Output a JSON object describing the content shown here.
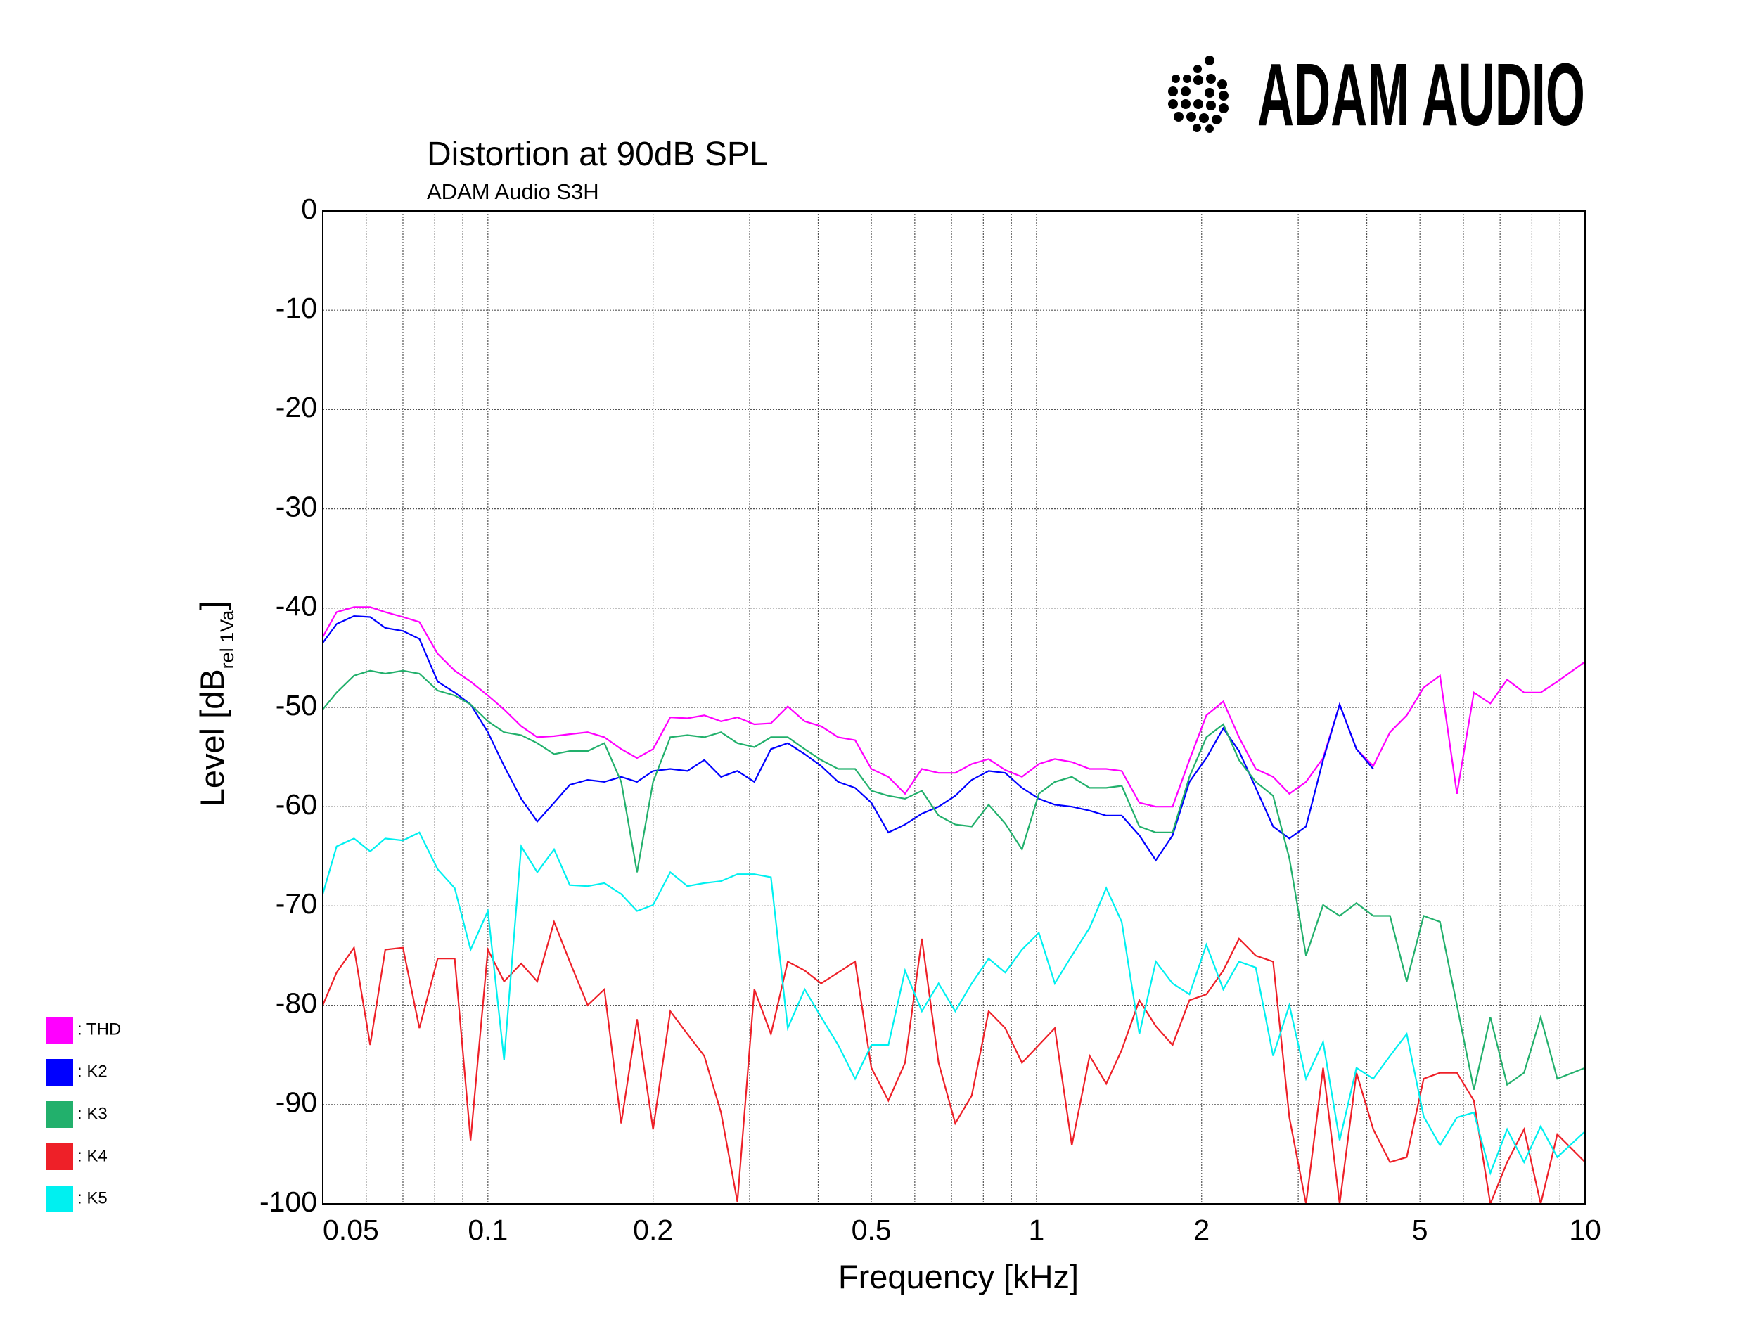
{
  "brand": "ADAM AUDIO",
  "chart_data": {
    "type": "line",
    "title": "Distortion at 90dB SPL",
    "subtitle": "ADAM Audio S3H",
    "xlabel": "Frequency [kHz]",
    "ylabel": "Level [dB",
    "ylabel_sub": "rel 1Va",
    "ylabel_end": "]",
    "xscale": "log",
    "grid": true,
    "legend": "bottom-left",
    "xlim": [
      0.05,
      10
    ],
    "xticks": [
      0.05,
      0.1,
      0.2,
      0.5,
      1,
      2,
      5,
      10
    ],
    "xminorticks": [
      0.06,
      0.07,
      0.08,
      0.09,
      0.3,
      0.4,
      0.6,
      0.7,
      0.8,
      0.9,
      3,
      4,
      6,
      7,
      8,
      9
    ],
    "ylim": [
      -100,
      0
    ],
    "yticks": [
      0,
      -10,
      -20,
      -30,
      -40,
      -50,
      -60,
      -70,
      -80,
      -90,
      -100
    ],
    "x": [
      0.05,
      0.053,
      0.057,
      0.061,
      0.065,
      0.07,
      0.075,
      0.081,
      0.087,
      0.093,
      0.1,
      0.107,
      0.115,
      0.123,
      0.132,
      0.141,
      0.152,
      0.163,
      0.175,
      0.187,
      0.2,
      0.215,
      0.231,
      0.248,
      0.266,
      0.285,
      0.306,
      0.328,
      0.352,
      0.378,
      0.405,
      0.435,
      0.467,
      0.5,
      0.537,
      0.576,
      0.618,
      0.663,
      0.711,
      0.762,
      0.818,
      0.877,
      0.941,
      1.01,
      1.08,
      1.16,
      1.25,
      1.34,
      1.43,
      1.54,
      1.65,
      1.77,
      1.9,
      2.04,
      2.19,
      2.34,
      2.51,
      2.7,
      2.89,
      3.1,
      3.33,
      3.57,
      3.83,
      4.11,
      4.41,
      4.73,
      5.08,
      5.44,
      5.84,
      6.27,
      6.72,
      7.21,
      7.74,
      8.3,
      8.9,
      10
    ],
    "series": [
      {
        "name": ": THD",
        "color": "#ff00ff",
        "values": [
          -42.9,
          -40.4,
          -39.9,
          -39.9,
          -40.4,
          -40.9,
          -41.4,
          -44.6,
          -46.3,
          -47.4,
          -48.8,
          -50.2,
          -51.9,
          -53,
          -52.9,
          -52.7,
          -52.5,
          -53,
          -54.2,
          -55.1,
          -54.2,
          -51,
          -51.1,
          -50.8,
          -51.4,
          -51,
          -51.7,
          -51.6,
          -49.9,
          -51.4,
          -51.9,
          -53,
          -53.3,
          -56.2,
          -57,
          -58.7,
          -56.2,
          -56.6,
          -56.6,
          -55.7,
          -55.2,
          -56.3,
          -57,
          -55.7,
          -55.2,
          -55.5,
          -56.2,
          -56.2,
          -56.4,
          -59.6,
          -60,
          -60,
          -55.3,
          -50.8,
          -49.4,
          -53,
          -56.2,
          -57,
          -58.7,
          -57.5,
          -55.1,
          -49.7,
          -54.2,
          -55.9,
          -52.5,
          -50.8,
          -48,
          -46.8,
          -58.7,
          -48.5,
          -49.6,
          -47.2,
          -48.5,
          -48.5,
          -47.4,
          -45.4
        ]
      },
      {
        "name": ": K2",
        "color": "#0000ff",
        "values": [
          -43.5,
          -41.6,
          -40.8,
          -40.9,
          -42,
          -42.3,
          -43.1,
          -47.4,
          -48.5,
          -49.7,
          -52.5,
          -55.9,
          -59.2,
          -61.5,
          -59.6,
          -57.8,
          -57.3,
          -57.5,
          -57,
          -57.5,
          -56.4,
          -56.2,
          -56.4,
          -55.3,
          -57,
          -56.4,
          -57.5,
          -54.2,
          -53.6,
          -54.7,
          -55.9,
          -57.5,
          -58.1,
          -59.6,
          -62.6,
          -61.8,
          -60.7,
          -60,
          -58.9,
          -57.3,
          -56.4,
          -56.6,
          -58.1,
          -59.2,
          -59.8,
          -60,
          -60.4,
          -60.9,
          -60.9,
          -62.9,
          -65.4,
          -62.9,
          -57.5,
          -55.1,
          -52.1,
          -54.4,
          -58.1,
          -62,
          -63.2,
          -62,
          -55.3,
          -49.7,
          -54.2,
          -56.2,
          null,
          null,
          null,
          null,
          null,
          null,
          null,
          null,
          null,
          null,
          null,
          null
        ]
      },
      {
        "name": ": K3",
        "color": "#22b06c",
        "values": [
          -50.2,
          -48.5,
          -46.8,
          -46.3,
          -46.6,
          -46.3,
          -46.6,
          -48.3,
          -48.8,
          -49.7,
          -51.4,
          -52.5,
          -52.8,
          -53.6,
          -54.7,
          -54.4,
          -54.4,
          -53.6,
          -57.5,
          -66.6,
          -57.5,
          -53,
          -52.8,
          -53,
          -52.5,
          -53.6,
          -54,
          -53,
          -53,
          -54.2,
          -55.3,
          -56.2,
          -56.2,
          -58.4,
          -58.9,
          -59.2,
          -58.4,
          -60.9,
          -61.8,
          -62,
          -59.8,
          -61.7,
          -64.3,
          -58.7,
          -57.5,
          -57,
          -58.1,
          -58.1,
          -57.9,
          -62,
          -62.6,
          -62.6,
          -57,
          -53,
          -51.7,
          -55.3,
          -57.5,
          -58.9,
          -65.2,
          -75,
          -69.9,
          -71,
          -69.7,
          -71,
          -71,
          -77.6,
          -71,
          -71.6,
          -80,
          -88.5,
          -81.2,
          -88,
          -86.8,
          -81.2,
          -87.4,
          -86.3
        ]
      },
      {
        "name": ": K4",
        "color": "#ee2028",
        "values": [
          -80,
          -76.7,
          -74.2,
          -84,
          -74.4,
          -74.2,
          -82.3,
          -75.3,
          -75.3,
          -93.6,
          -74.4,
          -77.6,
          -75.8,
          -77.6,
          -71.6,
          -75.6,
          -80,
          -78.4,
          -91.9,
          -81.4,
          -92.5,
          -80.6,
          -82.9,
          -85.1,
          -90.8,
          -99.8,
          -78.4,
          -82.9,
          -75.6,
          -76.5,
          -77.8,
          -76.7,
          -75.6,
          -86.3,
          -89.6,
          -85.8,
          -73.3,
          -85.8,
          -91.9,
          -89.1,
          -80.6,
          -82.3,
          -85.8,
          -84,
          -82.3,
          -94.1,
          -85.1,
          -87.9,
          -84.5,
          -79.5,
          -82.1,
          -84,
          -79.5,
          -78.9,
          -76.5,
          -73.3,
          -75,
          -75.6,
          -91.3,
          -100,
          -86.3,
          -100,
          -86.8,
          -92.5,
          -95.8,
          -95.3,
          -87.4,
          -86.8,
          -86.8,
          -89.6,
          -100,
          -95.8,
          -92.5,
          -100,
          -93,
          -95.8
        ]
      },
      {
        "name": ": K5",
        "color": "#00f0f0",
        "values": [
          -68.8,
          -64,
          -63.2,
          -64.5,
          -63.2,
          -63.4,
          -62.6,
          -66.3,
          -68.2,
          -74.4,
          -70.5,
          -85.5,
          -64,
          -66.6,
          -64.3,
          -67.9,
          -68,
          -67.7,
          -68.8,
          -70.5,
          -69.9,
          -66.6,
          -68,
          -67.7,
          -67.5,
          -66.8,
          -66.8,
          -67.1,
          -82.3,
          -78.4,
          -81.2,
          -84,
          -87.4,
          -84,
          -84,
          -76.5,
          -80.6,
          -77.8,
          -80.6,
          -77.8,
          -75.3,
          -76.7,
          -74.4,
          -72.7,
          -77.8,
          -75,
          -72.2,
          -68.2,
          -71.6,
          -82.9,
          -75.6,
          -77.8,
          -78.9,
          -73.9,
          -78.4,
          -75.6,
          -76.2,
          -85.1,
          -80,
          -87.4,
          -83.7,
          -93.6,
          -86.3,
          -87.4,
          -85.1,
          -82.9,
          -91.2,
          -94.1,
          -91.3,
          -90.8,
          -96.9,
          -92.5,
          -95.8,
          -92.2,
          -95.3,
          -92.7
        ]
      }
    ]
  }
}
